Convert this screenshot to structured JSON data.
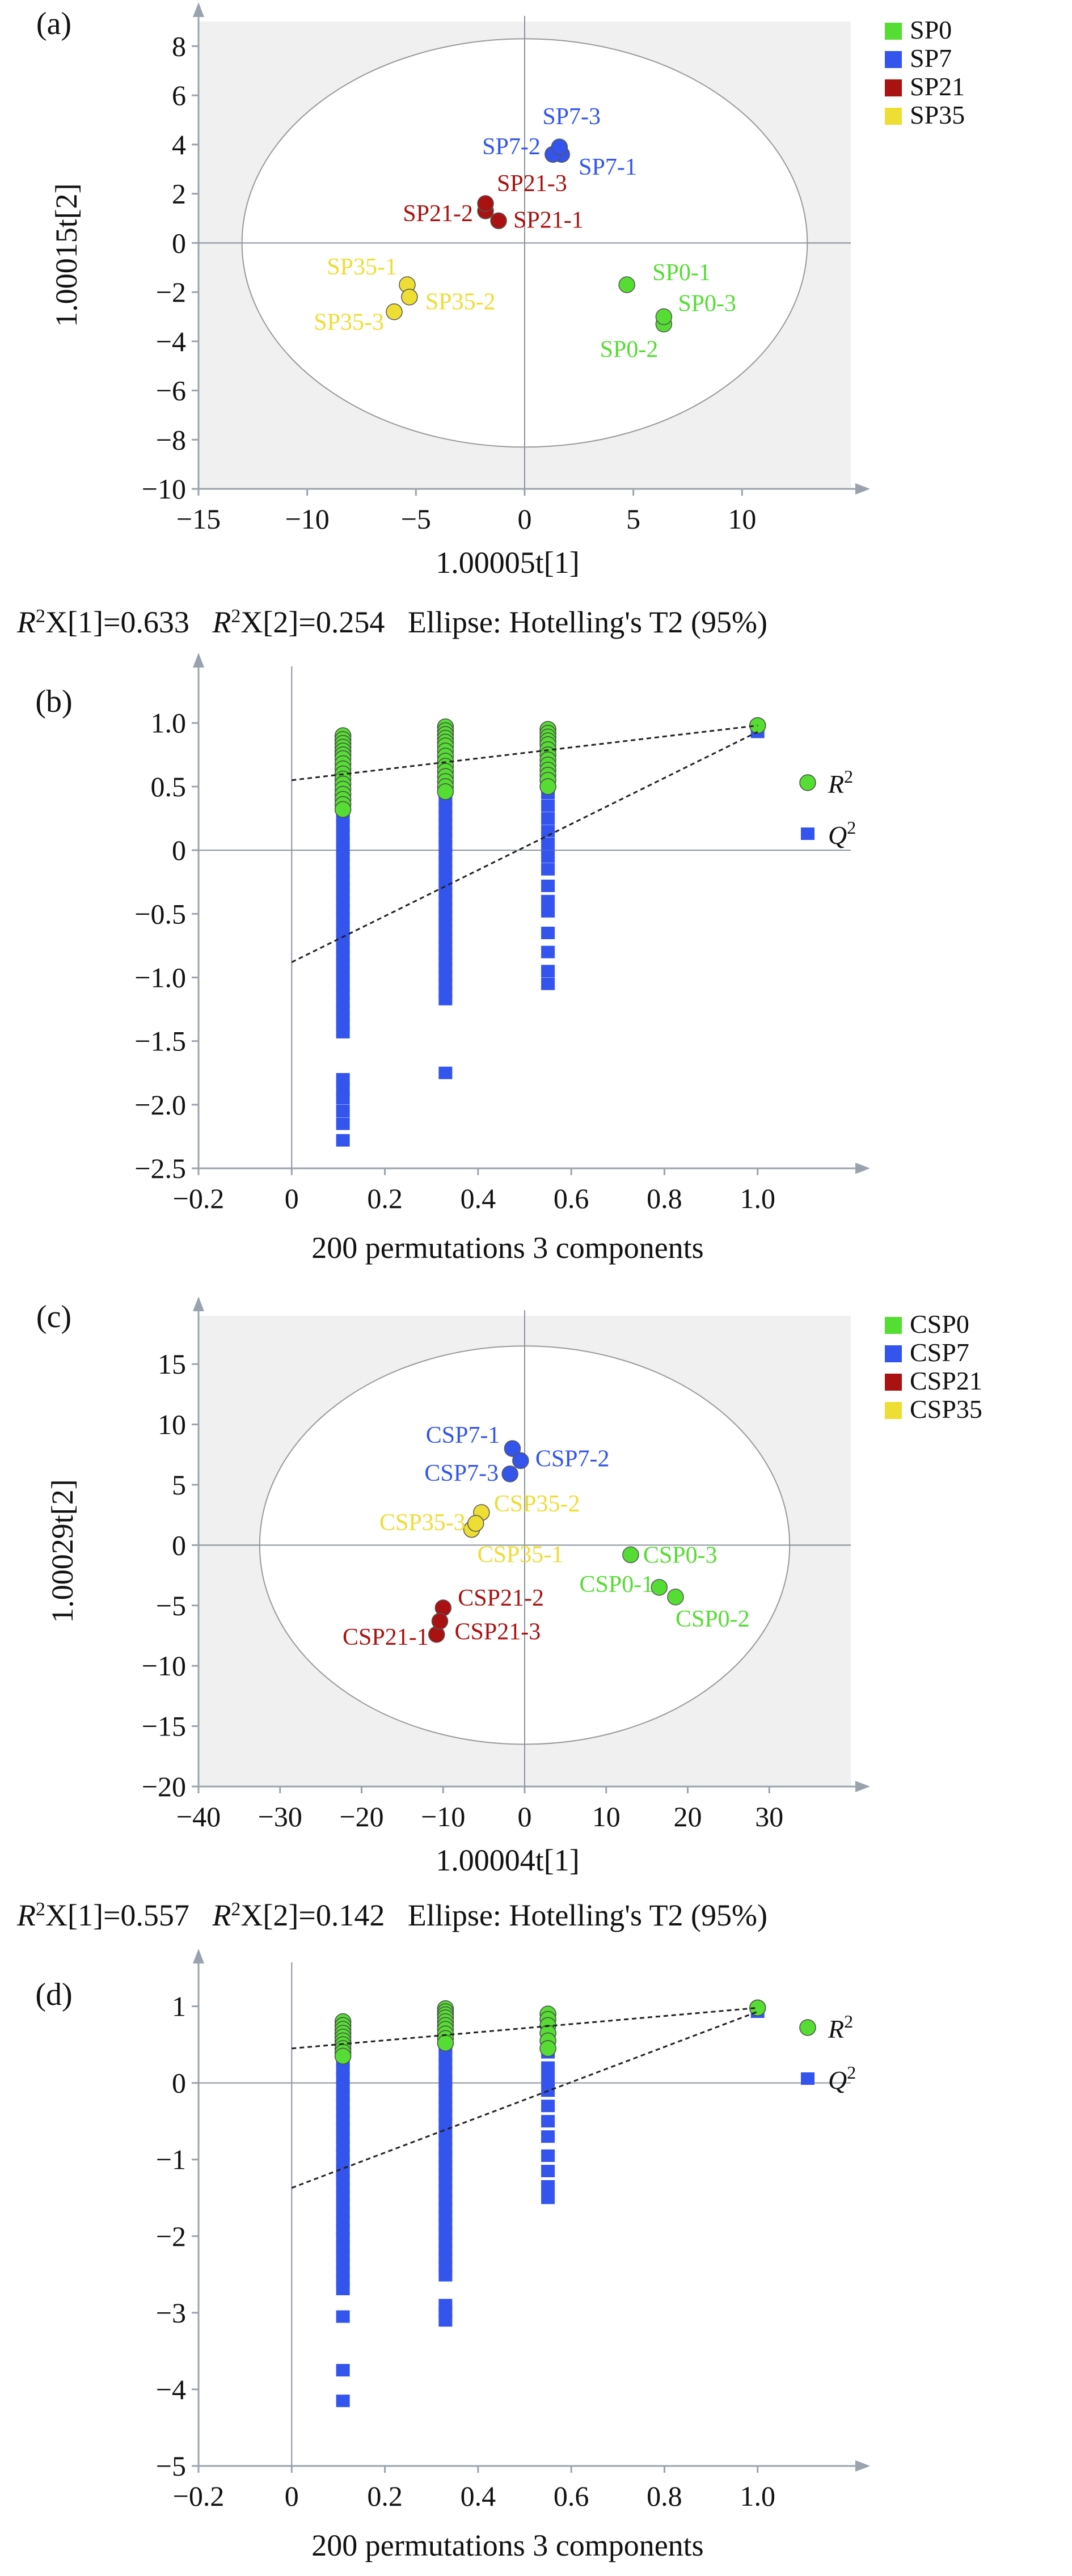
{
  "chart_data": [
    {
      "panel": "(a)",
      "type": "scatter",
      "xlabel": "1.00005t[1]",
      "ylabel": "1.00015t[2]",
      "xlim": [
        -15,
        15
      ],
      "ylim": [
        -10,
        9
      ],
      "xticks": [
        "−15",
        "−10",
        "−5",
        "0",
        "5",
        "10"
      ],
      "xtick_values": [
        -15,
        -10,
        -5,
        0,
        5,
        10
      ],
      "yticks": [
        "−10",
        "−8",
        "−6",
        "−4",
        "−2",
        "0",
        "2",
        "4",
        "6",
        "8"
      ],
      "ytick_values": [
        -10,
        -8,
        -6,
        -4,
        -2,
        0,
        2,
        4,
        6,
        8
      ],
      "ellipse": {
        "cx": 0,
        "cy": 0,
        "rx": 13.0,
        "ry": 8.3
      },
      "caption": {
        "r1": "X[1]=0.633",
        "r2": "X[2]=0.254",
        "ellipse_text": "Ellipse: Hotelling's T2 (95%)"
      },
      "legend": [
        {
          "name": "SP0",
          "color": "#55dd33"
        },
        {
          "name": "SP7",
          "color": "#3355ee"
        },
        {
          "name": "SP21",
          "color": "#aa1111"
        },
        {
          "name": "SP35",
          "color": "#eedd33"
        }
      ],
      "points": [
        {
          "label": "SP0-1",
          "x": 4.7,
          "y": -1.7,
          "group": 0
        },
        {
          "label": "SP0-2",
          "x": 6.4,
          "y": -3.3,
          "group": 0
        },
        {
          "label": "SP0-3",
          "x": 6.4,
          "y": -3.0,
          "group": 0
        },
        {
          "label": "SP7-1",
          "x": 1.7,
          "y": 3.6,
          "group": 1
        },
        {
          "label": "SP7-2",
          "x": 1.3,
          "y": 3.6,
          "group": 1
        },
        {
          "label": "SP7-3",
          "x": 1.6,
          "y": 3.9,
          "group": 1
        },
        {
          "label": "SP21-1",
          "x": -1.2,
          "y": 0.9,
          "group": 2
        },
        {
          "label": "SP21-2",
          "x": -1.8,
          "y": 1.3,
          "group": 2
        },
        {
          "label": "SP21-3",
          "x": -1.8,
          "y": 1.6,
          "group": 2
        },
        {
          "label": "SP35-1",
          "x": -5.4,
          "y": -1.7,
          "group": 3
        },
        {
          "label": "SP35-2",
          "x": -5.3,
          "y": -2.2,
          "group": 3
        },
        {
          "label": "SP35-3",
          "x": -6.0,
          "y": -2.8,
          "group": 3
        }
      ]
    },
    {
      "panel": "(b)",
      "type": "scatter",
      "xlabel": "200 permutations 3 components",
      "xlim": [
        -0.2,
        1.2
      ],
      "ylim": [
        -2.5,
        1.4
      ],
      "xticks": [
        "−0.2",
        "0",
        "0.2",
        "0.4",
        "0.6",
        "0.8",
        "1.0"
      ],
      "xtick_values": [
        -0.2,
        0,
        0.2,
        0.4,
        0.6,
        0.8,
        1.0
      ],
      "yticks": [
        "−2.5",
        "−2.0",
        "−1.5",
        "−1.0",
        "−0.5",
        "0",
        "0.5",
        "1.0"
      ],
      "ytick_values": [
        -2.5,
        -2.0,
        -1.5,
        -1.0,
        -0.5,
        0,
        0.5,
        1.0
      ],
      "legend": [
        {
          "name": "R",
          "sup": "2",
          "color": "#55dd33",
          "marker": "circle"
        },
        {
          "name": "Q",
          "sup": "2",
          "color": "#3355ee",
          "marker": "square"
        }
      ],
      "r2_line": {
        "intercept": 0.55,
        "end": [
          1.0,
          0.98
        ]
      },
      "q2_line": {
        "intercept": -0.88,
        "end": [
          1.0,
          0.93
        ]
      },
      "r2_points": {
        "x0.11": [
          0.9,
          0.87,
          0.84,
          0.81,
          0.78,
          0.75,
          0.72,
          0.68,
          0.64,
          0.6,
          0.56,
          0.52,
          0.48,
          0.44,
          0.4,
          0.36,
          0.32
        ],
        "x0.33": [
          0.97,
          0.94,
          0.91,
          0.88,
          0.85,
          0.82,
          0.78,
          0.74,
          0.7,
          0.66,
          0.62,
          0.58,
          0.54,
          0.5,
          0.46
        ],
        "x0.55": [
          0.95,
          0.92,
          0.89,
          0.86,
          0.83,
          0.79,
          0.75,
          0.71,
          0.67,
          0.63,
          0.59,
          0.55,
          0.5
        ],
        "x1.0": [
          0.98
        ]
      },
      "q2_points": {
        "x0.11": {
          "from": 0.55,
          "to": -1.45,
          "step": 0.06,
          "extra": [
            -1.8,
            -1.88,
            -1.95,
            -2.05,
            -2.15,
            -2.28
          ]
        },
        "x0.33": {
          "from": 0.75,
          "to": -1.2,
          "step": 0.06,
          "extra": [
            -1.75
          ]
        },
        "x0.55": [
          0.45,
          0.35,
          0.25,
          0.15,
          0.05,
          -0.05,
          -0.15,
          -0.28,
          -0.4,
          -0.48,
          -0.65,
          -0.8,
          -0.95,
          -1.05
        ],
        "x1.0": [
          0.93
        ]
      }
    },
    {
      "panel": "(c)",
      "type": "scatter",
      "xlabel": "1.00004t[1]",
      "ylabel": "1.00029t[2]",
      "xlim": [
        -40,
        40
      ],
      "ylim": [
        -20,
        19
      ],
      "xticks": [
        "−40",
        "−30",
        "−20",
        "−10",
        "0",
        "10",
        "20",
        "30"
      ],
      "xtick_values": [
        -40,
        -30,
        -20,
        -10,
        0,
        10,
        20,
        30
      ],
      "yticks": [
        "−20",
        "−15",
        "−10",
        "−5",
        "0",
        "5",
        "10",
        "15"
      ],
      "ytick_values": [
        -20,
        -15,
        -10,
        -5,
        0,
        5,
        10,
        15
      ],
      "ellipse": {
        "cx": 0,
        "cy": 0,
        "rx": 32.5,
        "ry": 16.5
      },
      "caption": {
        "r1": "X[1]=0.557",
        "r2": "X[2]=0.142",
        "ellipse_text": "Ellipse: Hotelling's T2 (95%)"
      },
      "legend": [
        {
          "name": "CSP0",
          "color": "#55dd33"
        },
        {
          "name": "CSP7",
          "color": "#3355ee"
        },
        {
          "name": "CSP21",
          "color": "#aa1111"
        },
        {
          "name": "CSP35",
          "color": "#eedd33"
        }
      ],
      "points": [
        {
          "label": "CSP0-1",
          "x": 16.5,
          "y": -3.5,
          "group": 0
        },
        {
          "label": "CSP0-2",
          "x": 18.5,
          "y": -4.3,
          "group": 0
        },
        {
          "label": "CSP0-3",
          "x": 13.0,
          "y": -0.8,
          "group": 0
        },
        {
          "label": "CSP7-1",
          "x": -1.5,
          "y": 8.0,
          "group": 1
        },
        {
          "label": "CSP7-2",
          "x": -0.5,
          "y": 7.0,
          "group": 1
        },
        {
          "label": "CSP7-3",
          "x": -1.8,
          "y": 5.9,
          "group": 1
        },
        {
          "label": "CSP21-1",
          "x": -10.8,
          "y": -7.4,
          "group": 2
        },
        {
          "label": "CSP21-2",
          "x": -10.0,
          "y": -5.2,
          "group": 2
        },
        {
          "label": "CSP21-3",
          "x": -10.4,
          "y": -6.3,
          "group": 2
        },
        {
          "label": "CSP35-1",
          "x": -6.5,
          "y": 1.3,
          "group": 3
        },
        {
          "label": "CSP35-2",
          "x": -5.3,
          "y": 2.7,
          "group": 3
        },
        {
          "label": "CSP35-3",
          "x": -6.0,
          "y": 1.8,
          "group": 3
        }
      ]
    },
    {
      "panel": "(d)",
      "type": "scatter",
      "xlabel": "200 permutations 3 components",
      "xlim": [
        -0.2,
        1.2
      ],
      "ylim": [
        -5,
        1.5
      ],
      "xticks": [
        "−0.2",
        "0",
        "0.2",
        "0.4",
        "0.6",
        "0.8",
        "1.0"
      ],
      "xtick_values": [
        -0.2,
        0,
        0.2,
        0.4,
        0.6,
        0.8,
        1.0
      ],
      "yticks": [
        "−5",
        "−4",
        "−3",
        "−2",
        "−1",
        "0",
        "1"
      ],
      "ytick_values": [
        -5,
        -4,
        -3,
        -2,
        -1,
        0,
        1
      ],
      "legend": [
        {
          "name": "R",
          "sup": "2",
          "color": "#55dd33",
          "marker": "circle"
        },
        {
          "name": "Q",
          "sup": "2",
          "color": "#3355ee",
          "marker": "square"
        }
      ],
      "r2_line": {
        "intercept": 0.45,
        "end": [
          1.0,
          0.98
        ]
      },
      "q2_line": {
        "intercept": -1.37,
        "end": [
          1.0,
          0.93
        ]
      },
      "r2_points": {
        "x0.11": [
          0.8,
          0.75,
          0.7,
          0.65,
          0.6,
          0.55,
          0.5,
          0.45,
          0.4,
          0.35
        ],
        "x0.33": [
          0.97,
          0.93,
          0.89,
          0.85,
          0.8,
          0.75,
          0.7,
          0.64,
          0.58,
          0.52
        ],
        "x0.55": [
          0.9,
          0.83,
          0.75,
          0.65,
          0.55,
          0.45
        ],
        "x1.0": [
          0.98
        ]
      },
      "q2_points": {
        "x0.11": {
          "from": 0.5,
          "to": -2.75,
          "step": 0.11,
          "extra": [
            -3.05,
            -3.75,
            -4.15
          ]
        },
        "x0.33": {
          "from": 0.9,
          "to": -2.55,
          "step": 0.11,
          "extra": [
            -2.9,
            -3.0,
            -3.1
          ]
        },
        "x0.55": [
          0.4,
          0.2,
          0.05,
          -0.1,
          -0.3,
          -0.5,
          -0.7,
          -0.95,
          -1.15,
          -1.35,
          -1.5
        ],
        "x1.0": [
          0.93
        ]
      }
    }
  ]
}
